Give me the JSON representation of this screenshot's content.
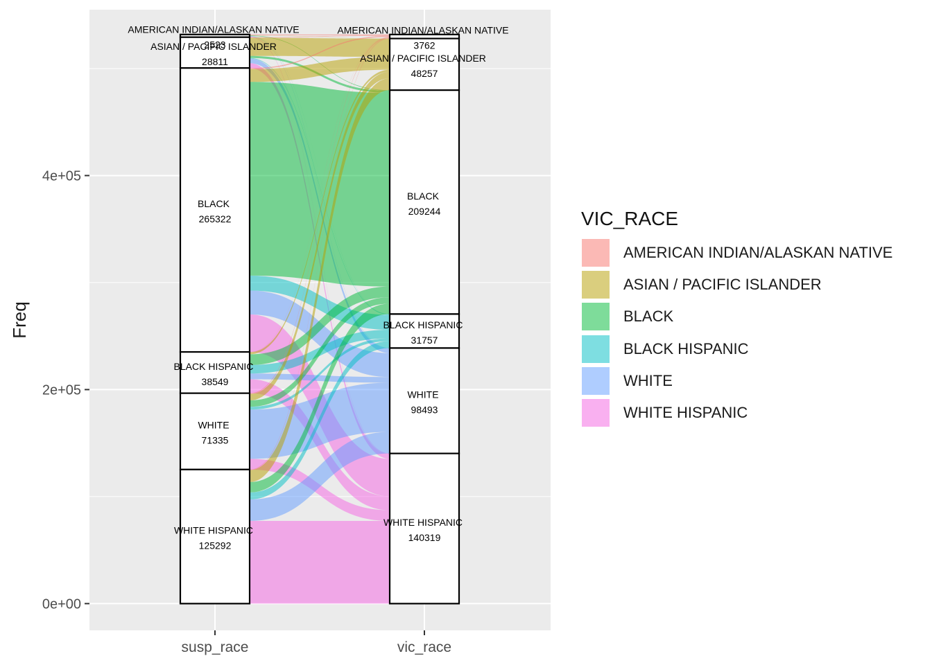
{
  "chart_data": {
    "type": "alluvial",
    "xlabel": "",
    "ylabel": "Freq",
    "ylim": [
      -25000,
      555000
    ],
    "yticks": [
      0,
      200000,
      400000
    ],
    "ytick_labels": [
      "0e+00",
      "2e+05",
      "4e+05"
    ],
    "grid": true,
    "legend_position": "right",
    "legend_title": "VIC_RACE",
    "categories_order": [
      "AMERICAN INDIAN/ALASKAN NATIVE",
      "ASIAN / PACIFIC ISLANDER",
      "BLACK",
      "BLACK HISPANIC",
      "WHITE",
      "WHITE HISPANIC"
    ],
    "colors": {
      "AMERICAN INDIAN/ALASKAN NATIVE": "#F8766D",
      "ASIAN / PACIFIC ISLANDER": "#B79F00",
      "BLACK": "#00BA38",
      "BLACK HISPANIC": "#00BFC4",
      "WHITE": "#619CFF",
      "WHITE HISPANIC": "#F564E3"
    },
    "axes": [
      {
        "name": "susp_race",
        "strata": [
          {
            "label": "AMERICAN INDIAN/ALASKAN NATIVE",
            "value": 2523
          },
          {
            "label": "ASIAN / PACIFIC ISLANDER",
            "value": 28811
          },
          {
            "label": "BLACK",
            "value": 265322
          },
          {
            "label": "BLACK HISPANIC",
            "value": 38549
          },
          {
            "label": "WHITE",
            "value": 71335
          },
          {
            "label": "WHITE HISPANIC",
            "value": 125292
          }
        ]
      },
      {
        "name": "vic_race",
        "strata": [
          {
            "label": "AMERICAN INDIAN/ALASKAN NATIVE",
            "value": 3762
          },
          {
            "label": "ASIAN / PACIFIC ISLANDER",
            "value": 48257
          },
          {
            "label": "BLACK",
            "value": 209244
          },
          {
            "label": "BLACK HISPANIC",
            "value": 31757
          },
          {
            "label": "WHITE",
            "value": 98493
          },
          {
            "label": "WHITE HISPANIC",
            "value": 140319
          }
        ]
      }
    ],
    "flows": [
      {
        "from": "AMERICAN INDIAN/ALASKAN NATIVE",
        "to": "AMERICAN INDIAN/ALASKAN NATIVE",
        "value": 800
      },
      {
        "from": "AMERICAN INDIAN/ALASKAN NATIVE",
        "to": "ASIAN / PACIFIC ISLANDER",
        "value": 150
      },
      {
        "from": "AMERICAN INDIAN/ALASKAN NATIVE",
        "to": "BLACK",
        "value": 500
      },
      {
        "from": "AMERICAN INDIAN/ALASKAN NATIVE",
        "to": "BLACK HISPANIC",
        "value": 150
      },
      {
        "from": "AMERICAN INDIAN/ALASKAN NATIVE",
        "to": "WHITE",
        "value": 400
      },
      {
        "from": "AMERICAN INDIAN/ALASKAN NATIVE",
        "to": "WHITE HISPANIC",
        "value": 523
      },
      {
        "from": "ASIAN / PACIFIC ISLANDER",
        "to": "AMERICAN INDIAN/ALASKAN NATIVE",
        "value": 500
      },
      {
        "from": "ASIAN / PACIFIC ISLANDER",
        "to": "ASIAN / PACIFIC ISLANDER",
        "value": 17000
      },
      {
        "from": "ASIAN / PACIFIC ISLANDER",
        "to": "BLACK",
        "value": 2000
      },
      {
        "from": "ASIAN / PACIFIC ISLANDER",
        "to": "BLACK HISPANIC",
        "value": 500
      },
      {
        "from": "ASIAN / PACIFIC ISLANDER",
        "to": "WHITE",
        "value": 4311
      },
      {
        "from": "ASIAN / PACIFIC ISLANDER",
        "to": "WHITE HISPANIC",
        "value": 4500
      },
      {
        "from": "BLACK",
        "to": "AMERICAN INDIAN/ALASKAN NATIVE",
        "value": 1000
      },
      {
        "from": "BLACK",
        "to": "ASIAN / PACIFIC ISLANDER",
        "value": 12000
      },
      {
        "from": "BLACK",
        "to": "BLACK",
        "value": 181000
      },
      {
        "from": "BLACK",
        "to": "BLACK HISPANIC",
        "value": 14000
      },
      {
        "from": "BLACK",
        "to": "WHITE",
        "value": 22322
      },
      {
        "from": "BLACK",
        "to": "WHITE HISPANIC",
        "value": 35000
      },
      {
        "from": "BLACK HISPANIC",
        "to": "AMERICAN INDIAN/ALASKAN NATIVE",
        "value": 200
      },
      {
        "from": "BLACK HISPANIC",
        "to": "ASIAN / PACIFIC ISLANDER",
        "value": 2000
      },
      {
        "from": "BLACK HISPANIC",
        "to": "BLACK",
        "value": 10000
      },
      {
        "from": "BLACK HISPANIC",
        "to": "BLACK HISPANIC",
        "value": 8000
      },
      {
        "from": "BLACK HISPANIC",
        "to": "WHITE",
        "value": 5349
      },
      {
        "from": "BLACK HISPANIC",
        "to": "WHITE HISPANIC",
        "value": 13000
      },
      {
        "from": "WHITE",
        "to": "AMERICAN INDIAN/ALASKAN NATIVE",
        "value": 700
      },
      {
        "from": "WHITE",
        "to": "ASIAN / PACIFIC ISLANDER",
        "value": 6000
      },
      {
        "from": "WHITE",
        "to": "BLACK",
        "value": 6000
      },
      {
        "from": "WHITE",
        "to": "BLACK HISPANIC",
        "value": 2635
      },
      {
        "from": "WHITE",
        "to": "WHITE",
        "value": 46000
      },
      {
        "from": "WHITE",
        "to": "WHITE HISPANIC",
        "value": 10000
      },
      {
        "from": "WHITE HISPANIC",
        "to": "AMERICAN INDIAN/ALASKAN NATIVE",
        "value": 562
      },
      {
        "from": "WHITE HISPANIC",
        "to": "ASIAN / PACIFIC ISLANDER",
        "value": 11107
      },
      {
        "from": "WHITE HISPANIC",
        "to": "BLACK",
        "value": 9744
      },
      {
        "from": "WHITE HISPANIC",
        "to": "BLACK HISPANIC",
        "value": 6472
      },
      {
        "from": "WHITE HISPANIC",
        "to": "WHITE",
        "value": 20111
      },
      {
        "from": "WHITE HISPANIC",
        "to": "WHITE HISPANIC",
        "value": 77296
      }
    ]
  }
}
